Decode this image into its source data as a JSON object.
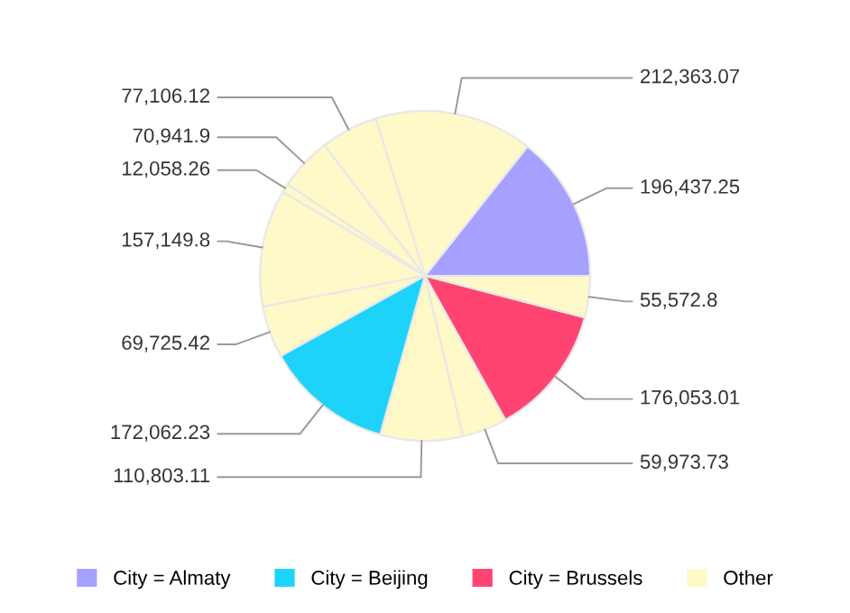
{
  "chart_data": {
    "type": "pie",
    "categories": [
      "City = Almaty",
      null,
      null,
      null,
      null,
      null,
      null,
      "City = Beijing",
      null,
      null,
      "City = Brussels",
      "Other"
    ],
    "values": [
      196437.25,
      212363.07,
      77106.12,
      70941.9,
      12058.26,
      157149.8,
      69725.42,
      172062.23,
      110803.11,
      59973.73,
      176053.01,
      55572.8
    ],
    "colors": [
      "#a6a1fe",
      "#fff8c9",
      "#fff8c9",
      "#fff8c9",
      "#fff8c9",
      "#fff8c9",
      "#fff8c9",
      "#1ed3fa",
      "#fff8c9",
      "#fff8c9",
      "#ff4472",
      "#fff8c9"
    ],
    "value_labels": [
      "196,437.25",
      "212,363.07",
      "77,106.12",
      "70,941.9",
      "12,058.26",
      "157,149.8",
      "69,725.42",
      "172,062.23",
      "110,803.11",
      "59,973.73",
      "176,053.01",
      "55,572.8"
    ],
    "legend": "bottom"
  }
}
